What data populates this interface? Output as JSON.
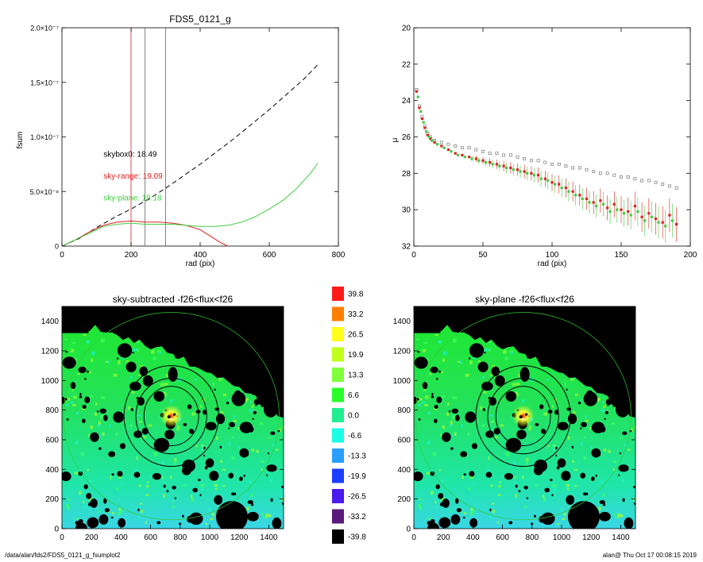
{
  "footer": {
    "path": "/data/alan/fds2/FDS5_0121_g_fsumplot2",
    "user_time": "alan@  Thu Oct 17 00:08:15 2019"
  },
  "chart_data": [
    {
      "id": "fsum",
      "type": "line",
      "title": "FDS5_0121_g",
      "xlabel": "rad (pix)",
      "ylabel": "fsum",
      "xlim": [
        0,
        800
      ],
      "ylim": [
        0,
        2e-07
      ],
      "xticks": [
        0,
        200,
        400,
        600,
        800
      ],
      "yticks": [
        {
          "value": 0,
          "label": "0"
        },
        {
          "value": 5e-08,
          "label": "5.0×10⁻⁸"
        },
        {
          "value": 1e-07,
          "label": "1.0×10⁻⁷"
        },
        {
          "value": 1.5e-07,
          "label": "1.5×10⁻⁷"
        },
        {
          "value": 2e-07,
          "label": "2.0×10⁻⁷"
        }
      ],
      "vlines": [
        {
          "x": 200,
          "color": "#dd2222"
        },
        {
          "x": 240,
          "color": "#666666"
        },
        {
          "x": 300,
          "color": "#666666"
        }
      ],
      "series": [
        {
          "style": "dashed",
          "color": "#000000",
          "x": [
            0,
            50,
            100,
            150,
            200,
            250,
            300,
            350,
            400,
            450,
            500,
            550,
            600,
            650,
            700,
            740
          ],
          "y": [
            0,
            7e-09,
            1.7e-08,
            2.6e-08,
            3.4e-08,
            4.3e-08,
            5.3e-08,
            6.4e-08,
            7.5e-08,
            8.7e-08,
            9.9e-08,
            1.12e-07,
            1.25e-07,
            1.39e-07,
            1.53e-07,
            1.66e-07
          ]
        },
        {
          "style": "solid",
          "color": "#dd2222",
          "x": [
            0,
            40,
            80,
            120,
            160,
            200,
            240,
            280,
            320,
            360,
            400,
            430,
            460,
            480
          ],
          "y": [
            0,
            6e-09,
            1.3e-08,
            1.9e-08,
            2.2e-08,
            2.3e-08,
            2.2e-08,
            2.2e-08,
            2.1e-08,
            1.9e-08,
            1.5e-08,
            9e-09,
            3e-09,
            0
          ]
        },
        {
          "style": "solid",
          "color": "#44cc44",
          "x": [
            0,
            40,
            80,
            120,
            160,
            200,
            240,
            280,
            320,
            360,
            400,
            440,
            480,
            520,
            560,
            600,
            640,
            680,
            720,
            740
          ],
          "y": [
            0,
            6e-09,
            1.2e-08,
            1.8e-08,
            2e-08,
            2.1e-08,
            2e-08,
            2e-08,
            2e-08,
            1.9e-08,
            1.8e-08,
            1.8e-08,
            1.9e-08,
            2.2e-08,
            2.7e-08,
            3.4e-08,
            4.2e-08,
            5.3e-08,
            6.7e-08,
            7.6e-08
          ]
        }
      ],
      "annotations": [
        {
          "text": "skybox0: 18.49",
          "color": "#000000",
          "x": 120,
          "y": 8.2e-08
        },
        {
          "text": "sky-range: 19.09",
          "color": "#dd2222",
          "x": 120,
          "y": 6.2e-08
        },
        {
          "text": "sky-plane: 19.18",
          "color": "#44cc44",
          "x": 120,
          "y": 4.2e-08
        }
      ]
    },
    {
      "id": "profile",
      "type": "scatter",
      "title": "",
      "xlabel": "rad (pix)",
      "ylabel": "μ",
      "xlim": [
        0,
        200
      ],
      "ylim": [
        32,
        20
      ],
      "xticks": [
        0,
        50,
        100,
        150,
        200
      ],
      "yticks": [
        20,
        22,
        24,
        26,
        28,
        30,
        32
      ],
      "series": [
        {
          "marker": "open-square",
          "color": "#666666",
          "x": [
            2,
            4,
            6,
            8,
            10,
            12,
            15,
            20,
            25,
            30,
            35,
            40,
            45,
            50,
            55,
            60,
            65,
            70,
            75,
            80,
            85,
            90,
            95,
            100,
            105,
            110,
            115,
            120,
            125,
            130,
            135,
            140,
            145,
            150,
            155,
            160,
            165,
            170,
            175,
            180,
            185,
            190
          ],
          "y": [
            23.4,
            24.3,
            24.9,
            25.4,
            25.8,
            26.0,
            26.2,
            26.3,
            26.4,
            26.5,
            26.6,
            26.6,
            26.7,
            26.8,
            26.9,
            26.9,
            27.0,
            27.0,
            27.1,
            27.2,
            27.3,
            27.3,
            27.4,
            27.5,
            27.5,
            27.6,
            27.7,
            27.7,
            27.8,
            27.9,
            28.0,
            28.0,
            28.1,
            28.2,
            28.2,
            28.3,
            28.4,
            28.4,
            28.5,
            28.6,
            28.7,
            28.8
          ]
        },
        {
          "marker": "filled-square",
          "color": "#dd2222",
          "x": [
            2,
            4,
            6,
            8,
            10,
            12,
            15,
            20,
            25,
            30,
            35,
            40,
            45,
            50,
            55,
            60,
            65,
            70,
            75,
            80,
            85,
            90,
            95,
            100,
            105,
            110,
            115,
            120,
            125,
            130,
            135,
            140,
            145,
            150,
            155,
            160,
            165,
            170,
            175,
            180,
            185,
            190
          ],
          "y": [
            23.5,
            24.4,
            25.0,
            25.5,
            25.9,
            26.1,
            26.3,
            26.5,
            26.7,
            26.9,
            27.0,
            27.1,
            27.2,
            27.3,
            27.4,
            27.5,
            27.6,
            27.7,
            27.8,
            27.9,
            28.0,
            28.1,
            28.3,
            28.5,
            28.6,
            28.8,
            29.0,
            29.2,
            29.4,
            29.6,
            29.5,
            29.9,
            29.7,
            30.0,
            30.1,
            29.8,
            30.4,
            30.2,
            30.5,
            30.7,
            30.3,
            30.8
          ]
        },
        {
          "marker": "filled-square",
          "color": "#44cc44",
          "x": [
            3,
            5,
            7,
            9,
            11,
            13,
            17,
            22,
            27,
            32,
            37,
            42,
            47,
            52,
            57,
            62,
            67,
            72,
            77,
            82,
            87,
            92,
            97,
            102,
            107,
            112,
            117,
            122,
            127,
            132,
            137,
            142,
            147,
            152,
            157,
            162,
            167,
            172,
            177,
            182,
            187
          ],
          "y": [
            23.8,
            24.6,
            25.2,
            25.7,
            26.0,
            26.2,
            26.4,
            26.6,
            26.8,
            27.0,
            27.1,
            27.2,
            27.3,
            27.4,
            27.5,
            27.6,
            27.7,
            27.8,
            27.9,
            28.0,
            28.1,
            28.3,
            28.4,
            28.6,
            28.8,
            29.0,
            29.2,
            29.4,
            29.6,
            29.8,
            29.7,
            30.1,
            30.0,
            30.2,
            30.3,
            30.1,
            30.6,
            30.4,
            30.7,
            30.9,
            30.6
          ]
        }
      ]
    },
    {
      "id": "image-sky-subtracted",
      "type": "heatmap",
      "title": "sky-subtracted -f26<flux<f26",
      "xlim": [
        0,
        1500
      ],
      "ylim": [
        0,
        1500
      ],
      "xticks": [
        0,
        200,
        400,
        600,
        800,
        1000,
        1200,
        1400
      ],
      "yticks": [
        0,
        200,
        400,
        600,
        800,
        1000,
        1200,
        1400
      ],
      "center": [
        740,
        760
      ],
      "ellipses": [
        {
          "rx": 185,
          "ry": 200
        },
        {
          "rx": 240,
          "ry": 255
        },
        {
          "rx": 320,
          "ry": 340
        },
        {
          "rx": 730,
          "ry": 700
        }
      ]
    },
    {
      "id": "image-sky-plane",
      "type": "heatmap",
      "title": "sky-plane -f26<flux<f26",
      "xlim": [
        0,
        1500
      ],
      "ylim": [
        0,
        1500
      ],
      "xticks": [
        0,
        200,
        400,
        600,
        800,
        1000,
        1200,
        1400
      ],
      "yticks": [
        0,
        200,
        400,
        600,
        800,
        1000,
        1200,
        1400
      ],
      "center": [
        740,
        760
      ],
      "ellipses": [
        {
          "rx": 185,
          "ry": 200
        },
        {
          "rx": 240,
          "ry": 255
        },
        {
          "rx": 320,
          "ry": 340
        },
        {
          "rx": 730,
          "ry": 700
        }
      ]
    }
  ],
  "colorbar": {
    "labels": [
      "39.8",
      "33.2",
      "26.5",
      "19.9",
      "13.3",
      "6.6",
      "0.0",
      "-6.6",
      "-13.3",
      "-19.9",
      "-26.5",
      "-33.2",
      "-39.8"
    ],
    "colors": [
      "#ff1a1a",
      "#ff8000",
      "#ffff1a",
      "#bfff1a",
      "#80ff3a",
      "#2aff2a",
      "#20ee90",
      "#1affe6",
      "#2a9fff",
      "#1a3fff",
      "#4a1aee",
      "#5a1a7a",
      "#000000"
    ]
  }
}
